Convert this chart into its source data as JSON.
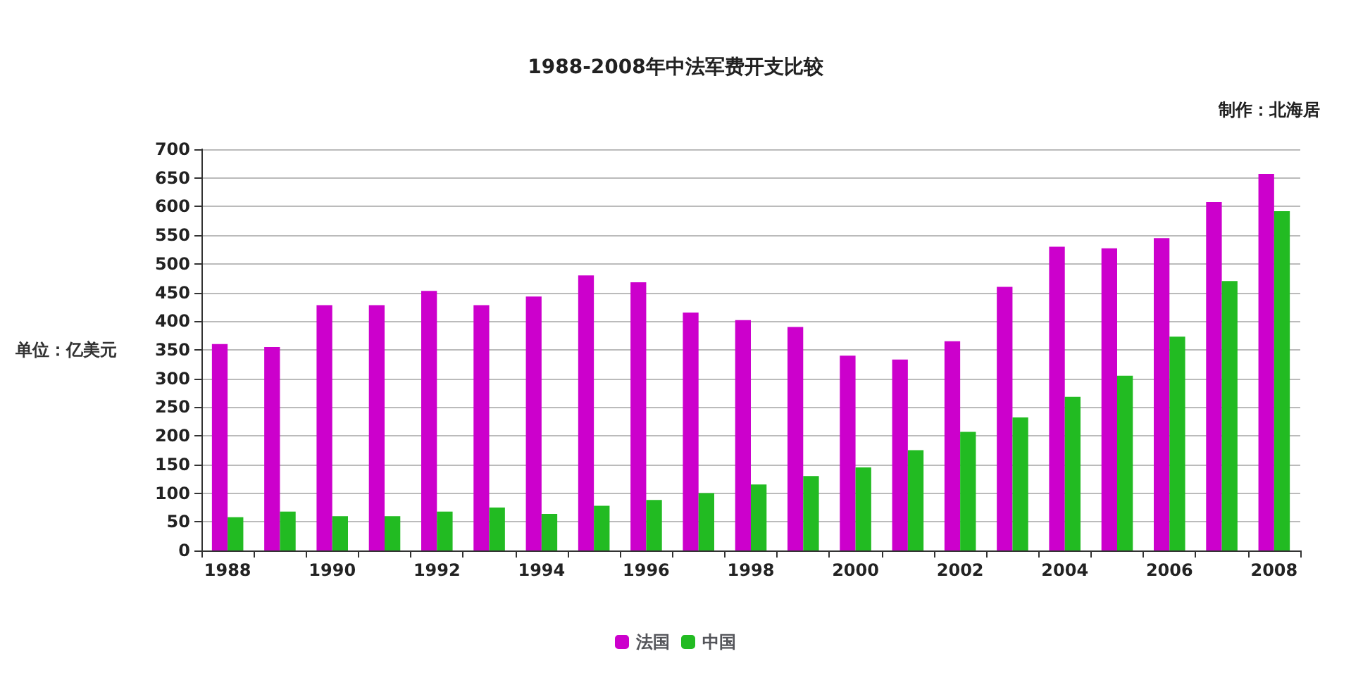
{
  "chart_data": {
    "type": "bar",
    "title": "1988-2008年中法军费开支比较",
    "ylabel": "单位：亿美元",
    "annotations": [
      "制作：北海居"
    ],
    "categories": [
      "1988",
      null,
      "1990",
      null,
      "1992",
      null,
      "1994",
      null,
      "1996",
      null,
      "1998",
      null,
      "2000",
      null,
      "2002",
      null,
      "2004",
      null,
      "2006",
      null,
      "2008"
    ],
    "series": [
      {
        "name": "法国",
        "color": "#cc00cc",
        "values": [
          360,
          355,
          428,
          428,
          453,
          428,
          443,
          480,
          468,
          415,
          402,
          390,
          340,
          333,
          365,
          460,
          530,
          527,
          545,
          608,
          657
        ]
      },
      {
        "name": "中国",
        "color": "#22bb22",
        "values": [
          58,
          68,
          60,
          60,
          68,
          75,
          64,
          78,
          88,
          100,
          115,
          130,
          145,
          175,
          207,
          232,
          268,
          305,
          373,
          470,
          592
        ]
      }
    ],
    "ylim": [
      0,
      700
    ],
    "yticks": [
      0,
      50,
      100,
      150,
      200,
      250,
      300,
      350,
      400,
      450,
      500,
      550,
      600,
      650,
      700
    ],
    "grid": "y",
    "legend": "bottom"
  }
}
